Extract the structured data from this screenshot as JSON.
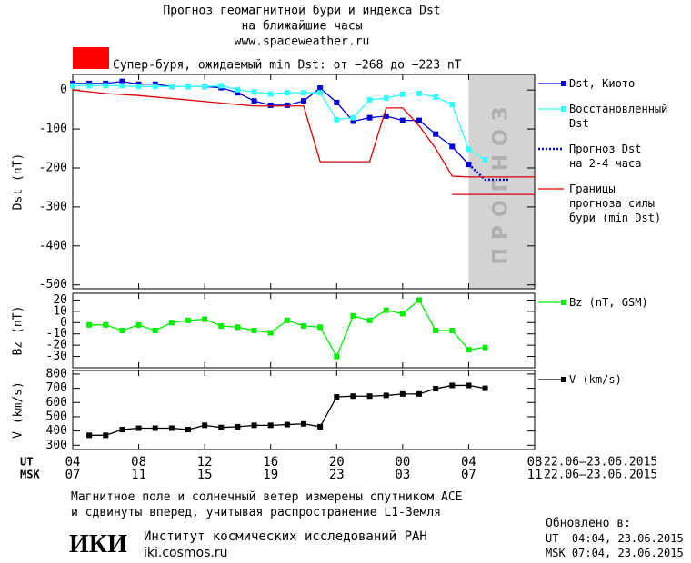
{
  "header": {
    "title": "Прогноз геомагнитной бури и индекса Dst",
    "subtitle": "на ближайшие часы",
    "site": "www.spaceweather.ru"
  },
  "storm_note": {
    "color": "#ff0000",
    "text": "Супер-буря, ожидаемый min Dst: от −268 до −223 nT"
  },
  "chart_data": [
    {
      "type": "line",
      "ylabel": "Dst (nT)",
      "ylim": [
        -510,
        40
      ],
      "yticks": [
        0,
        -100,
        -200,
        -300,
        -400,
        -500
      ],
      "forecast_region": {
        "x": [
          24,
          28
        ],
        "label": "ПРОГНОЗ",
        "color": "#d3d3d3"
      },
      "series": [
        {
          "name": "Dst, Киото",
          "color": "#0000dd",
          "markers": true,
          "dash": "solid",
          "x": [
            0,
            1,
            2,
            3,
            4,
            5,
            6,
            7,
            8,
            9,
            10,
            11,
            12,
            13,
            14,
            15,
            16,
            17,
            18,
            19,
            20,
            21,
            22,
            23,
            24
          ],
          "values": [
            17,
            17,
            17,
            22,
            15,
            15,
            9,
            9,
            9,
            6,
            -7,
            -28,
            -39,
            -39,
            -28,
            5,
            -32,
            -80,
            -71,
            -67,
            -78,
            -78,
            -113,
            -145,
            -191
          ]
        },
        {
          "name": "Восстановленный\nDst",
          "color": "#33ffff",
          "markers": true,
          "dash": "solid",
          "x": [
            0,
            1,
            2,
            3,
            4,
            5,
            6,
            7,
            8,
            9,
            10,
            11,
            12,
            13,
            14,
            15,
            16,
            17,
            18,
            19,
            20,
            21,
            22,
            23,
            24,
            25
          ],
          "values": [
            11,
            11,
            11,
            11,
            9,
            9,
            9,
            9,
            9,
            11,
            1,
            -5,
            -10,
            -7,
            -7,
            -7,
            -76,
            -71,
            -25,
            -21,
            -11,
            -9,
            -18,
            -37,
            -152,
            -179
          ]
        },
        {
          "name": "Прогноз Dst\nна 2-4 часа",
          "color": "#0000dd",
          "markers": false,
          "dash": "dotted",
          "x": [
            24,
            25,
            26.5
          ],
          "values": [
            -191,
            -230,
            -230
          ]
        },
        {
          "name": "Границы\nпрогноза силы\nбури (min Dst)",
          "color": "#dd0000",
          "markers": false,
          "dash": "solid",
          "x": [
            0,
            2,
            4,
            11,
            14,
            15,
            18,
            19,
            20,
            21,
            22,
            23,
            24,
            28,
            23,
            23,
            28
          ],
          "values": [
            0,
            -9,
            -14,
            -41,
            -41,
            -184,
            -184,
            -46,
            -46,
            -92,
            -150,
            -221,
            -223,
            -223,
            null,
            -268,
            -268
          ]
        }
      ]
    },
    {
      "type": "line",
      "ylabel": "Bz (nT)",
      "ylim": [
        -40,
        26
      ],
      "yticks": [
        20,
        10,
        0,
        -10,
        -20,
        -30
      ],
      "series": [
        {
          "name": "Bz (nT, GSM)",
          "color": "#00ee00",
          "markers": true,
          "dash": "solid",
          "x": [
            1,
            2,
            3,
            4,
            5,
            6,
            7,
            8,
            9,
            10,
            11,
            12,
            13,
            14,
            15,
            16,
            17,
            18,
            19,
            20,
            21,
            22,
            23,
            24,
            25
          ],
          "values": [
            -2,
            -2,
            -7,
            -2,
            -7,
            0,
            2,
            3,
            -3,
            -4,
            -7,
            -9,
            2,
            -3,
            -4,
            -30,
            6,
            2,
            11,
            8,
            20,
            -7,
            -7,
            -24,
            -22
          ]
        }
      ]
    },
    {
      "type": "line",
      "ylabel": "V (km/s)",
      "ylim": [
        270,
        825
      ],
      "yticks": [
        800,
        700,
        600,
        500,
        400,
        300
      ],
      "xlim": [
        0,
        28
      ],
      "xticks": [
        {
          "value": 0,
          "label": "04"
        },
        {
          "value": 4,
          "label": "08"
        },
        {
          "value": 8,
          "label": "12"
        },
        {
          "value": 12,
          "label": "16"
        },
        {
          "value": 16,
          "label": "20"
        },
        {
          "value": 20,
          "label": "00"
        },
        {
          "value": 24,
          "label": "04"
        },
        {
          "value": 28,
          "label": "08"
        }
      ],
      "msk_ticklabels": [
        "07",
        "11",
        "15",
        "19",
        "23",
        "03",
        "07",
        "11"
      ],
      "x_rows": [
        "UT",
        "MSK"
      ],
      "date_range": [
        "22.06–23.06.2015",
        "22.06–23.06.2015"
      ],
      "series": [
        {
          "name": "V (km/s)",
          "color": "#000000",
          "markers": true,
          "dash": "solid",
          "x": [
            1,
            2,
            3,
            4,
            5,
            6,
            7,
            8,
            9,
            10,
            11,
            12,
            13,
            14,
            15,
            16,
            17,
            18,
            19,
            20,
            21,
            22,
            23,
            24,
            25
          ],
          "values": [
            370,
            370,
            410,
            420,
            420,
            420,
            410,
            440,
            425,
            430,
            440,
            440,
            445,
            450,
            430,
            640,
            645,
            645,
            650,
            660,
            660,
            697,
            720,
            720,
            700
          ]
        }
      ]
    }
  ],
  "footer": {
    "note": [
      "Магнитное поле и солнечный ветер измерены спутником ACE",
      "и сдвинуты вперед, учитывая распространение L1-Земля"
    ],
    "updated": [
      "Обновлено в:",
      "UT  04:04, 23.06.2015",
      "MSK 07:04, 23.06.2015"
    ],
    "logo": "ИКИ",
    "institute": "Институт космических исследований РАН",
    "url": "iki.cosmos.ru"
  }
}
